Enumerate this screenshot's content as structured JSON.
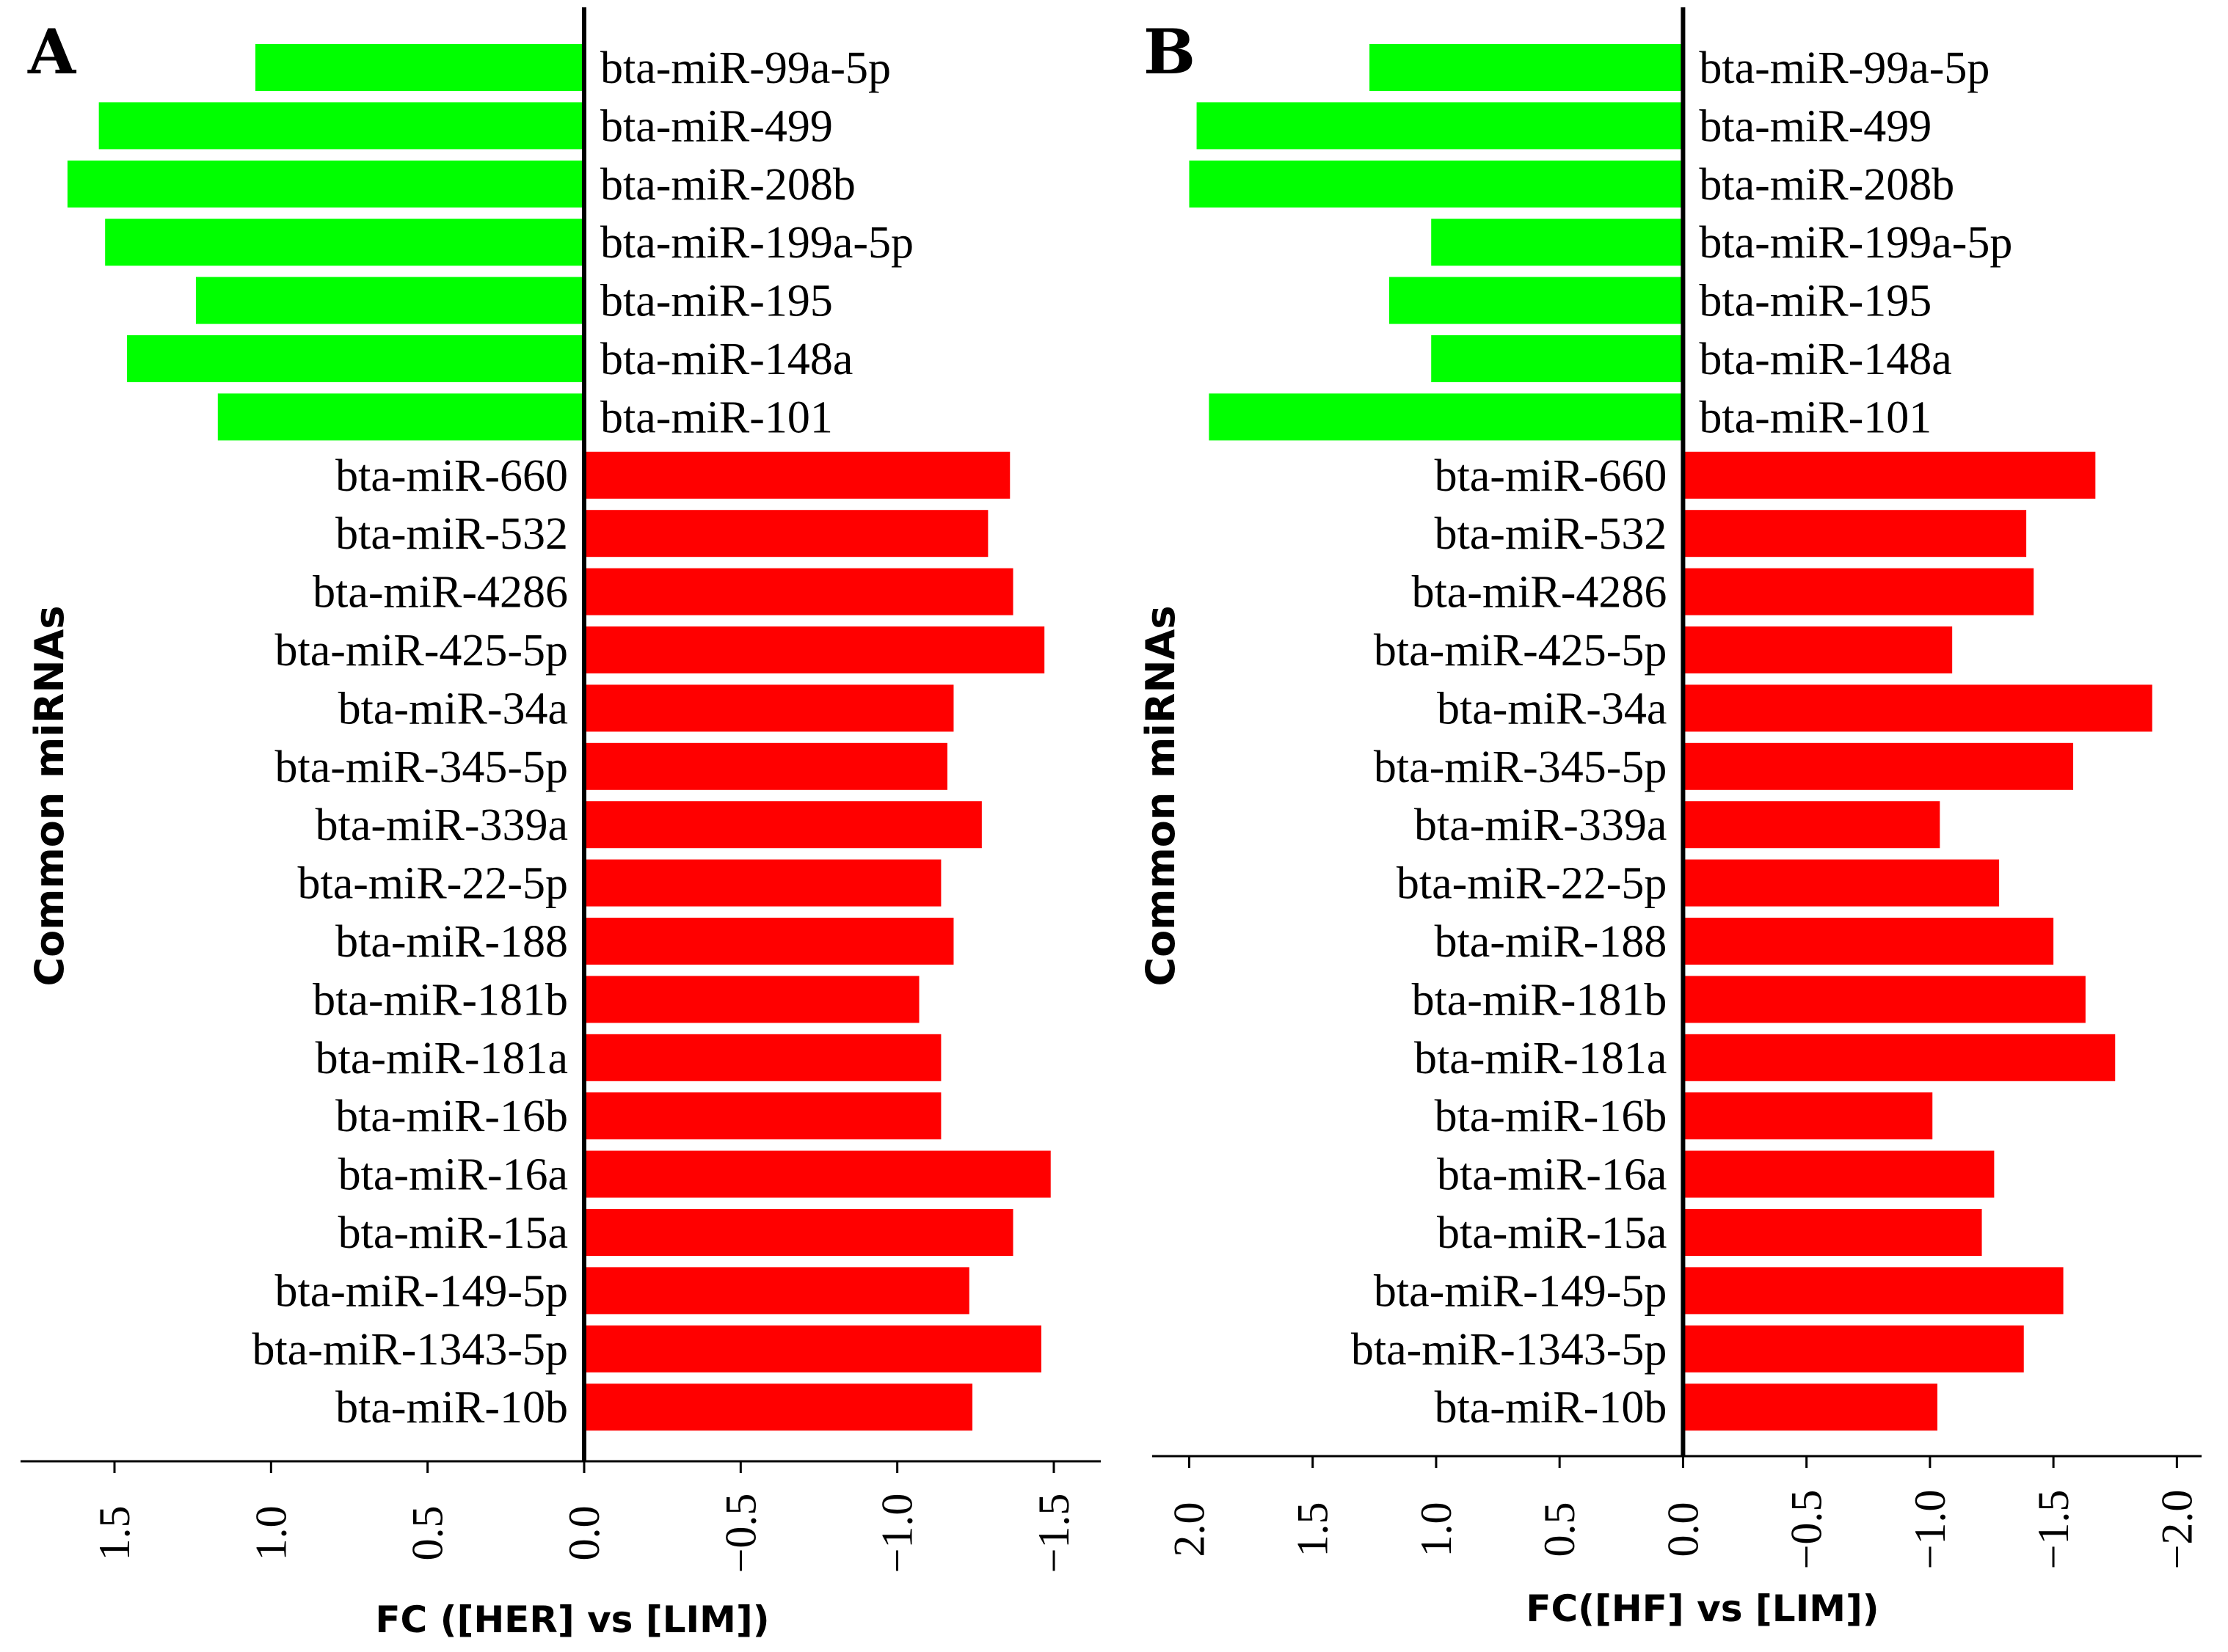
{
  "colors": {
    "down": "#00ff00",
    "up": "#ff0000",
    "axis": "#000000",
    "background": "#ffffff"
  },
  "chart_data": [
    {
      "type": "bar",
      "orientation": "horizontal",
      "panel": "A",
      "title": "",
      "xlabel": "FC ([HER] vs [LIM])",
      "ylabel": "Common miRNAs",
      "xlim": [
        1.8,
        -1.65
      ],
      "x_ticks": [
        "1.5",
        "1.0",
        "0.5",
        "0.0",
        "−0.5",
        "−1.0",
        "−1.5"
      ],
      "x_tick_values": [
        1.5,
        1.0,
        0.5,
        0.0,
        -0.5,
        -1.0,
        -1.5
      ],
      "categories": [
        "bta-miR-99a-5p",
        "bta-miR-499",
        "bta-miR-208b",
        "bta-miR-199a-5p",
        "bta-miR-195",
        "bta-miR-148a",
        "bta-miR-101",
        "bta-miR-660",
        "bta-miR-532",
        "bta-miR-4286",
        "bta-miR-425-5p",
        "bta-miR-34a",
        "bta-miR-345-5p",
        "bta-miR-339a",
        "bta-miR-22-5p",
        "bta-miR-188",
        "bta-miR-181b",
        "bta-miR-181a",
        "bta-miR-16b",
        "bta-miR-16a",
        "bta-miR-15a",
        "bta-miR-149-5p",
        "bta-miR-1343-5p",
        "bta-miR-10b"
      ],
      "values": [
        1.05,
        1.55,
        1.65,
        1.53,
        1.24,
        1.46,
        1.17,
        -1.36,
        -1.29,
        -1.37,
        -1.47,
        -1.18,
        -1.16,
        -1.27,
        -1.14,
        -1.18,
        -1.07,
        -1.14,
        -1.14,
        -1.49,
        -1.37,
        -1.23,
        -1.46,
        -1.24
      ],
      "grid": false,
      "legend": "none"
    },
    {
      "type": "bar",
      "orientation": "horizontal",
      "panel": "B",
      "title": "",
      "xlabel": "FC([HF] vs [LIM])",
      "ylabel": "Common miRNAs",
      "xlim": [
        2.15,
        -2.1
      ],
      "x_ticks": [
        "2.0",
        "1.5",
        "1.0",
        "0.5",
        "0.0",
        "−0.5",
        "−1.0",
        "−1.5",
        "−2.0"
      ],
      "x_tick_values": [
        2.0,
        1.5,
        1.0,
        0.5,
        0.0,
        -0.5,
        -1.0,
        -1.5,
        -2.0
      ],
      "categories": [
        "bta-miR-99a-5p",
        "bta-miR-499",
        "bta-miR-208b",
        "bta-miR-199a-5p",
        "bta-miR-195",
        "bta-miR-148a",
        "bta-miR-101",
        "bta-miR-660",
        "bta-miR-532",
        "bta-miR-4286",
        "bta-miR-425-5p",
        "bta-miR-34a",
        "bta-miR-345-5p",
        "bta-miR-339a",
        "bta-miR-22-5p",
        "bta-miR-188",
        "bta-miR-181b",
        "bta-miR-181a",
        "bta-miR-16b",
        "bta-miR-16a",
        "bta-miR-15a",
        "bta-miR-149-5p",
        "bta-miR-1343-5p",
        "bta-miR-10b"
      ],
      "values": [
        1.27,
        1.97,
        2.0,
        1.02,
        1.19,
        1.02,
        1.92,
        -1.67,
        -1.39,
        -1.42,
        -1.09,
        -1.9,
        -1.58,
        -1.04,
        -1.28,
        -1.5,
        -1.63,
        -1.75,
        -1.01,
        -1.26,
        -1.21,
        -1.54,
        -1.38,
        -1.03
      ],
      "grid": false,
      "legend": "none"
    }
  ]
}
